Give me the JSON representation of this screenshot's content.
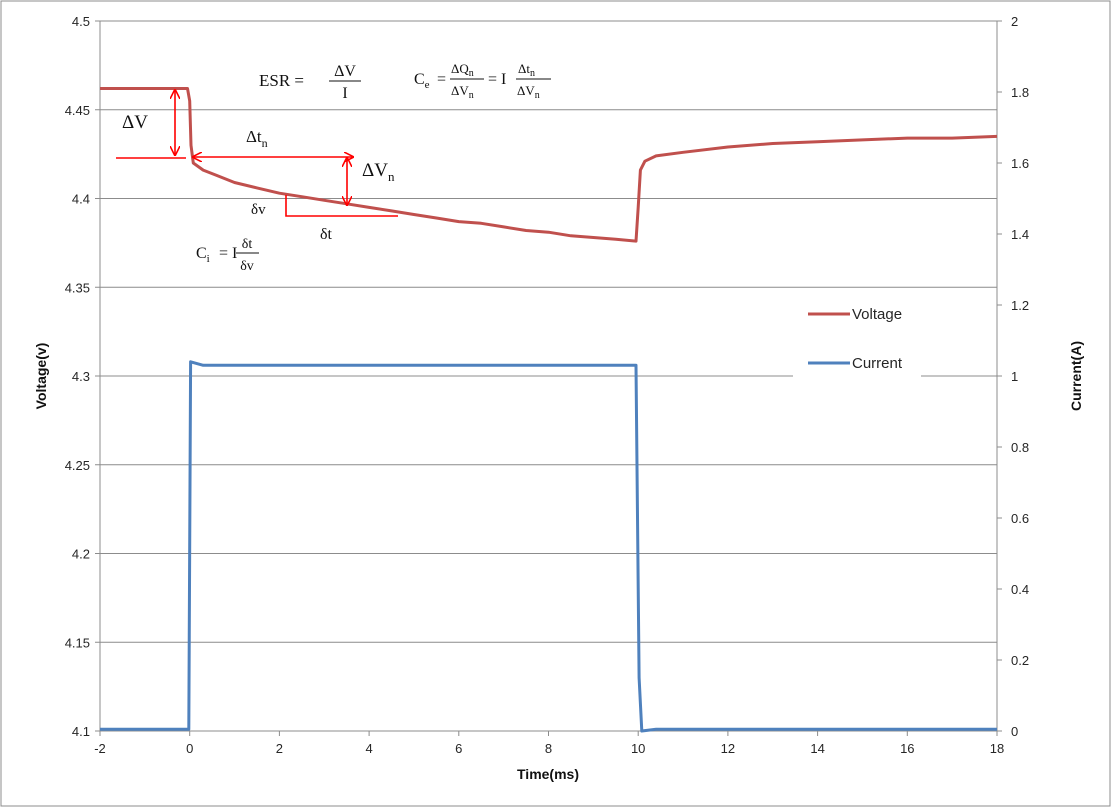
{
  "chart_data": {
    "type": "line",
    "title": "",
    "xlabel": "Time(ms)",
    "ylabel_left": "Voltage(v)",
    "ylabel_right": "Current(A)",
    "xlim": [
      -2,
      18
    ],
    "ylim_left": [
      4.1,
      4.5
    ],
    "ylim_right": [
      0,
      2
    ],
    "x_ticks": [
      -2,
      0,
      2,
      4,
      6,
      8,
      10,
      12,
      14,
      16,
      18
    ],
    "y_ticks_left": [
      "4.1",
      "4.15",
      "4.2",
      "4.25",
      "4.3",
      "4.35",
      "4.4",
      "4.45",
      "4.5"
    ],
    "y_ticks_right": [
      "0",
      "0.2",
      "0.4",
      "0.6",
      "0.8",
      "1",
      "1.2",
      "1.4",
      "1.6",
      "1.8",
      "2"
    ],
    "grid": "horizontal",
    "legend": "right",
    "series": [
      {
        "name": "Voltage",
        "axis": "left",
        "color": "#c0504d",
        "points": [
          [
            -2,
            4.462
          ],
          [
            -0.05,
            4.462
          ],
          [
            0,
            4.455
          ],
          [
            0.03,
            4.43
          ],
          [
            0.08,
            4.42
          ],
          [
            0.3,
            4.416
          ],
          [
            0.6,
            4.413
          ],
          [
            1,
            4.409
          ],
          [
            1.5,
            4.406
          ],
          [
            2,
            4.403
          ],
          [
            2.5,
            4.401
          ],
          [
            3,
            4.399
          ],
          [
            3.5,
            4.397
          ],
          [
            4,
            4.395
          ],
          [
            4.5,
            4.393
          ],
          [
            5,
            4.391
          ],
          [
            5.5,
            4.389
          ],
          [
            6,
            4.387
          ],
          [
            6.5,
            4.386
          ],
          [
            7,
            4.384
          ],
          [
            7.5,
            4.382
          ],
          [
            8,
            4.381
          ],
          [
            8.5,
            4.379
          ],
          [
            9,
            4.378
          ],
          [
            9.5,
            4.377
          ],
          [
            9.95,
            4.376
          ],
          [
            10,
            4.395
          ],
          [
            10.05,
            4.416
          ],
          [
            10.15,
            4.421
          ],
          [
            10.4,
            4.424
          ],
          [
            11,
            4.426
          ],
          [
            12,
            4.429
          ],
          [
            13,
            4.431
          ],
          [
            14,
            4.432
          ],
          [
            15,
            4.433
          ],
          [
            16,
            4.434
          ],
          [
            17,
            4.434
          ],
          [
            18,
            4.435
          ]
        ]
      },
      {
        "name": "Current",
        "axis": "right",
        "color": "#4f81bd",
        "points": [
          [
            -2,
            0.005
          ],
          [
            -0.02,
            0.005
          ],
          [
            0.02,
            1.04
          ],
          [
            0.3,
            1.03
          ],
          [
            1,
            1.03
          ],
          [
            5,
            1.03
          ],
          [
            9.95,
            1.03
          ],
          [
            10.02,
            0.15
          ],
          [
            10.08,
            0
          ],
          [
            10.4,
            0.005
          ],
          [
            18,
            0.005
          ]
        ]
      }
    ],
    "annotations": {
      "delta_v": "ΔV",
      "delta_tn": "Δt",
      "delta_tn_sub": "n",
      "delta_vn": "ΔV",
      "delta_vn_sub": "n",
      "small_dv": "δv",
      "small_dt": "δt",
      "esr_lhs": "ESR =",
      "esr_num": "ΔV",
      "esr_den": "I",
      "ce_lhs": "C",
      "ce_sub": "e",
      "ce_eq": "=",
      "ce_num1": "ΔQ",
      "ce_num1_sub": "n",
      "ce_den1": "ΔV",
      "ce_den1_sub": "n",
      "ce_eq2": "= I",
      "ce_num2": "Δt",
      "ce_num2_sub": "n",
      "ce_den2": "ΔV",
      "ce_den2_sub": "n",
      "ci_lhs": "C",
      "ci_sub": "i",
      "ci_eq": "= I",
      "ci_num": "δt",
      "ci_den": "δv",
      "arrow_color": "#ff0000"
    }
  }
}
